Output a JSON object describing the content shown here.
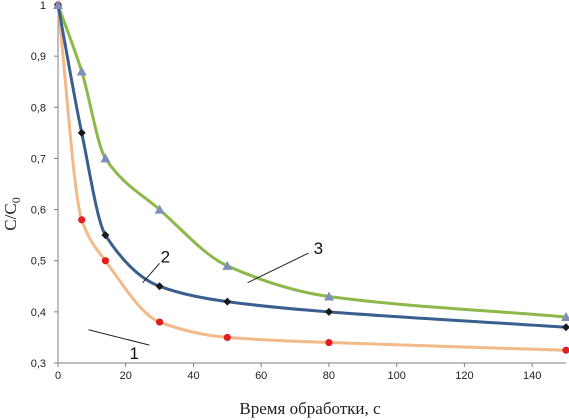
{
  "chart_data": {
    "type": "line",
    "xlabel": "Время обработки, с",
    "ylabel_main": "C/C",
    "ylabel_sub": "0",
    "xlim": [
      0,
      150
    ],
    "ylim": [
      0.3,
      1.0
    ],
    "x_ticks": [
      "0",
      "20",
      "40",
      "60",
      "80",
      "100",
      "120",
      "140"
    ],
    "y_ticks": [
      "0,3",
      "0,4",
      "0,5",
      "0,6",
      "0,7",
      "0,8",
      "0,9",
      "1"
    ],
    "grid": false,
    "series": [
      {
        "name": "1",
        "color": "#f4b989",
        "marker": "circle",
        "marker_color": "#e02020",
        "x": [
          0,
          7,
          14,
          30,
          50,
          80,
          150
        ],
        "y": [
          1.0,
          0.58,
          0.5,
          0.38,
          0.35,
          0.34,
          0.325
        ],
        "label_at": [
          9,
          0.365
        ],
        "label_pos": [
          27,
          0.335
        ]
      },
      {
        "name": "2",
        "color": "#3a5f8f",
        "marker": "diamond",
        "marker_color": "#1a1a1a",
        "x": [
          0,
          7,
          14,
          30,
          50,
          80,
          150
        ],
        "y": [
          1.0,
          0.75,
          0.55,
          0.45,
          0.42,
          0.4,
          0.37
        ],
        "label_at": [
          25,
          0.457
        ],
        "label_pos": [
          30,
          0.495
        ]
      },
      {
        "name": "3",
        "color": "#8db84a",
        "marker": "triangle",
        "marker_color": "#7f8fb8",
        "x": [
          0,
          7,
          14,
          30,
          50,
          80,
          150
        ],
        "y": [
          1.0,
          0.87,
          0.7,
          0.6,
          0.49,
          0.43,
          0.39
        ],
        "label_at": [
          56,
          0.457
        ],
        "label_pos": [
          74,
          0.515
        ]
      }
    ]
  }
}
